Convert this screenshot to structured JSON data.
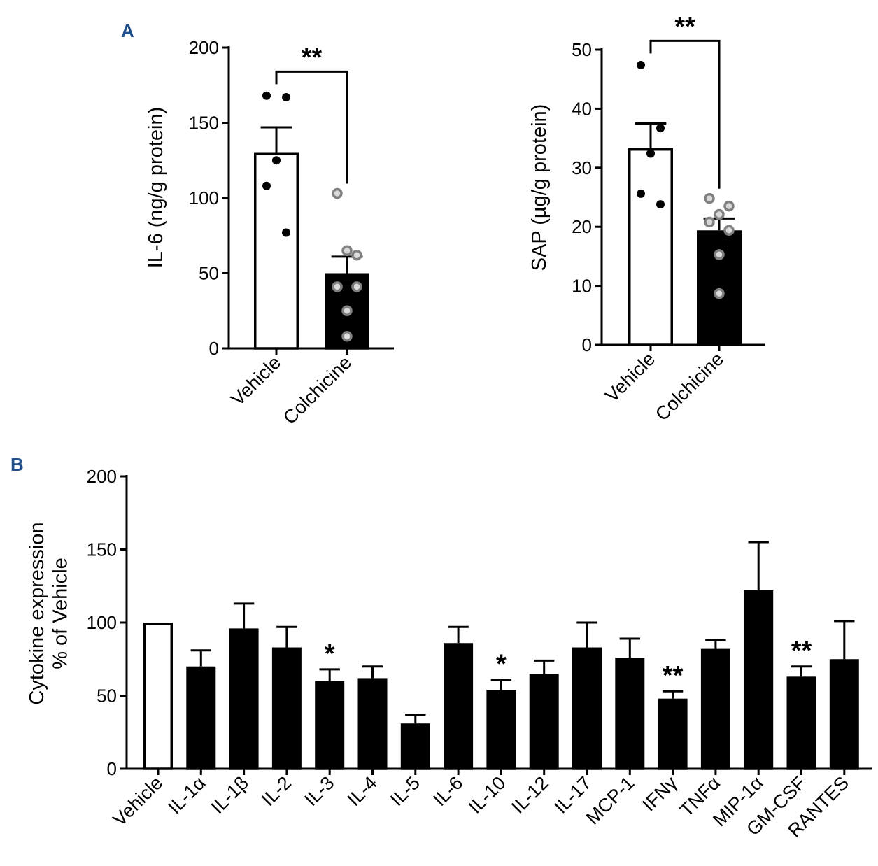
{
  "colors": {
    "panel_letter": "#1f4e8c",
    "bar_fill": "#000000",
    "open_fill": "#ffffff",
    "gray_dot": "#808080"
  },
  "panels": {
    "A": {
      "label": "A"
    },
    "B": {
      "label": "B"
    }
  },
  "chart_data": [
    {
      "id": "A1",
      "type": "bar",
      "panel": "A",
      "title": "",
      "xlabel": "",
      "ylabel": "IL-6 (ng/g protein)",
      "ylim": [
        0,
        200
      ],
      "yticks": [
        0,
        50,
        100,
        150,
        200
      ],
      "categories": [
        "Vehicle",
        "Colchicine"
      ],
      "values": [
        130,
        50
      ],
      "errors": [
        17,
        11
      ],
      "bar_fill": [
        "white",
        "black"
      ],
      "points": [
        [
          168,
          167,
          125,
          108,
          77
        ],
        [
          103,
          62,
          65,
          41,
          41,
          25,
          8
        ]
      ],
      "significance": [
        {
          "from": "Vehicle",
          "to": "Colchicine",
          "label": "**",
          "y": 184
        }
      ]
    },
    {
      "id": "A2",
      "type": "bar",
      "panel": "A",
      "title": "",
      "xlabel": "",
      "ylabel": "SAP (µg/g protein)",
      "ylim": [
        0,
        50
      ],
      "yticks": [
        0,
        10,
        20,
        30,
        40,
        50
      ],
      "categories": [
        "Vehicle",
        "Colchicine"
      ],
      "values": [
        33.3,
        19.4
      ],
      "errors": [
        4.2,
        2
      ],
      "bar_fill": [
        "white",
        "black"
      ],
      "points": [
        [
          47.4,
          36.7,
          32.4,
          25.6,
          23.8
        ],
        [
          24.8,
          23.5,
          22.1,
          20.8,
          19.4,
          15.3,
          8.7
        ]
      ],
      "significance": [
        {
          "from": "Vehicle",
          "to": "Colchicine",
          "label": "**",
          "y": 51.5
        }
      ]
    },
    {
      "id": "B",
      "type": "bar",
      "panel": "B",
      "title": "",
      "xlabel": "",
      "ylabel": [
        "Cytokine expression",
        "% of Vehicle"
      ],
      "ylim": [
        0,
        200
      ],
      "yticks": [
        0,
        50,
        100,
        150,
        200
      ],
      "categories": [
        "Vehicle",
        "IL-1α",
        "IL-1β",
        "IL-2",
        "IL-3",
        "IL-4",
        "IL-5",
        "IL-6",
        "IL-10",
        "IL-12",
        "IL-17",
        "MCP-1",
        "IFNγ",
        "TNFα",
        "MIP-1α",
        "GM-CSF",
        "RANTES"
      ],
      "values": [
        100,
        70,
        96,
        83,
        60,
        62,
        31,
        86,
        54,
        65,
        83,
        76,
        48,
        82,
        122,
        63,
        75
      ],
      "errors": [
        0,
        11,
        17,
        14,
        8,
        8,
        6,
        11,
        7,
        9,
        17,
        13,
        5,
        6,
        33,
        7,
        26
      ],
      "bar_fill": [
        "white",
        "black",
        "black",
        "black",
        "black",
        "black",
        "black",
        "black",
        "black",
        "black",
        "black",
        "black",
        "black",
        "black",
        "black",
        "black",
        "black"
      ],
      "significance": [
        "",
        "",
        "",
        "",
        "*",
        "",
        "",
        "",
        "*",
        "",
        "",
        "",
        "**",
        "",
        "",
        "**",
        ""
      ]
    }
  ]
}
